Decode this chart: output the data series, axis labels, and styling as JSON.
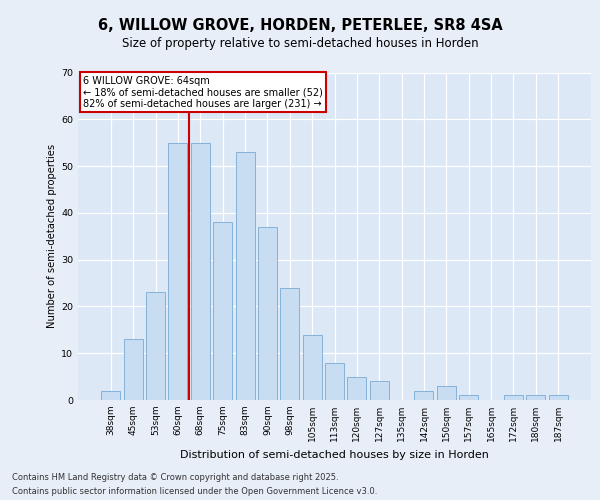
{
  "title1": "6, WILLOW GROVE, HORDEN, PETERLEE, SR8 4SA",
  "title2": "Size of property relative to semi-detached houses in Horden",
  "xlabel": "Distribution of semi-detached houses by size in Horden",
  "ylabel": "Number of semi-detached properties",
  "categories": [
    "38sqm",
    "45sqm",
    "53sqm",
    "60sqm",
    "68sqm",
    "75sqm",
    "83sqm",
    "90sqm",
    "98sqm",
    "105sqm",
    "113sqm",
    "120sqm",
    "127sqm",
    "135sqm",
    "142sqm",
    "150sqm",
    "157sqm",
    "165sqm",
    "172sqm",
    "180sqm",
    "187sqm"
  ],
  "values": [
    2,
    13,
    23,
    55,
    55,
    38,
    53,
    37,
    24,
    14,
    8,
    5,
    4,
    0,
    2,
    3,
    1,
    0,
    1,
    1,
    1
  ],
  "bar_color": "#c9ddf2",
  "bar_edge_color": "#7aaad4",
  "vline_color": "#cc0000",
  "annotation_title": "6 WILLOW GROVE: 64sqm",
  "annotation_line1": "← 18% of semi-detached houses are smaller (52)",
  "annotation_line2": "82% of semi-detached houses are larger (231) →",
  "annotation_box_color": "#cc0000",
  "ylim": [
    0,
    70
  ],
  "yticks": [
    0,
    10,
    20,
    30,
    40,
    50,
    60,
    70
  ],
  "footer1": "Contains HM Land Registry data © Crown copyright and database right 2025.",
  "footer2": "Contains public sector information licensed under the Open Government Licence v3.0.",
  "fig_bg_color": "#e8eef8",
  "plot_bg_color": "#dce8f5"
}
